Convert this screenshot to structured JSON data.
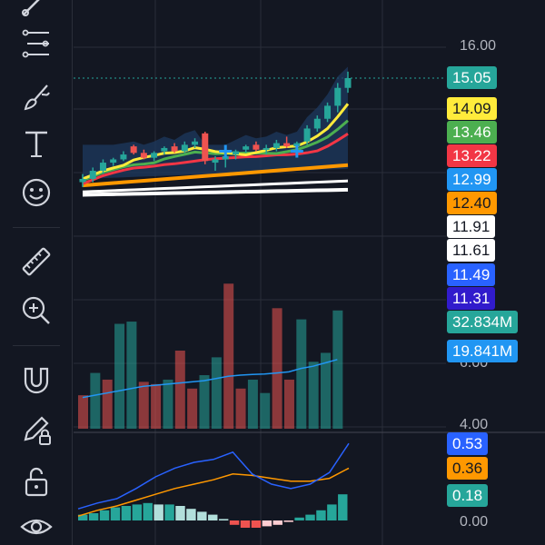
{
  "toolbar": {
    "tools": [
      {
        "name": "trend-line-tool-icon"
      },
      {
        "name": "fib-retracement-tool-icon"
      },
      {
        "name": "brush-tool-icon"
      },
      {
        "name": "text-tool-icon"
      },
      {
        "name": "emoji-tool-icon"
      },
      {
        "name": "ruler-tool-icon"
      },
      {
        "name": "zoom-in-tool-icon"
      },
      {
        "name": "magnet-tool-icon"
      },
      {
        "name": "lock-drawing-tool-icon"
      },
      {
        "name": "unlock-tool-icon"
      },
      {
        "name": "eye-visibility-tool-icon"
      }
    ]
  },
  "price_axis": {
    "ticks": [
      "16.00",
      "6.00",
      "4.00",
      "0.00"
    ],
    "labels": [
      {
        "value": "15.05",
        "bg": "#26a69a",
        "fg": "#ffffff"
      },
      {
        "value": "14.09",
        "bg": "#ffeb3b",
        "fg": "#131722"
      },
      {
        "value": "13.46",
        "bg": "#4caf50",
        "fg": "#ffffff"
      },
      {
        "value": "13.22",
        "bg": "#f23645",
        "fg": "#ffffff"
      },
      {
        "value": "12.99",
        "bg": "#2196f3",
        "fg": "#ffffff"
      },
      {
        "value": "12.40",
        "bg": "#ff9800",
        "fg": "#131722"
      },
      {
        "value": "11.91",
        "bg": "#ffffff",
        "fg": "#131722"
      },
      {
        "value": "11.61",
        "bg": "#ffffff",
        "fg": "#131722"
      },
      {
        "value": "11.49",
        "bg": "#2962ff",
        "fg": "#ffffff"
      },
      {
        "value": "11.31",
        "bg": "#311bcc",
        "fg": "#ffffff"
      }
    ]
  },
  "volume_axis": {
    "labels": [
      {
        "value": "32.834M",
        "bg": "#26a69a",
        "fg": "#ffffff"
      },
      {
        "value": "19.841M",
        "bg": "#2196f3",
        "fg": "#ffffff"
      }
    ]
  },
  "macd_axis": {
    "labels": [
      {
        "value": "0.53",
        "bg": "#2962ff",
        "fg": "#ffffff"
      },
      {
        "value": "0.36",
        "bg": "#ff9800",
        "fg": "#131722"
      },
      {
        "value": "0.18",
        "bg": "#26a69a",
        "fg": "#ffffff"
      }
    ]
  },
  "colors": {
    "up": "#26a69a",
    "down": "#ef5350",
    "volume_up": "#26a69a",
    "volume_down": "#ef5350",
    "grid": "#2a2e39",
    "macd_line": "#2962ff",
    "signal_line": "#ff9800"
  },
  "chart_data": {
    "candles": [
      {
        "o": 11.85,
        "h": 12.1,
        "l": 11.7,
        "c": 11.95
      },
      {
        "o": 11.95,
        "h": 12.3,
        "l": 11.85,
        "c": 12.2
      },
      {
        "o": 12.2,
        "h": 12.55,
        "l": 12.1,
        "c": 12.45
      },
      {
        "o": 12.45,
        "h": 12.6,
        "l": 12.35,
        "c": 12.55
      },
      {
        "o": 12.55,
        "h": 12.8,
        "l": 12.5,
        "c": 12.7
      },
      {
        "o": 12.95,
        "h": 13.0,
        "l": 12.7,
        "c": 12.75
      },
      {
        "o": 12.75,
        "h": 12.85,
        "l": 12.55,
        "c": 12.6
      },
      {
        "o": 12.6,
        "h": 12.8,
        "l": 12.5,
        "c": 12.75
      },
      {
        "o": 12.8,
        "h": 12.95,
        "l": 12.7,
        "c": 12.9
      },
      {
        "o": 12.95,
        "h": 13.05,
        "l": 12.75,
        "c": 12.8
      },
      {
        "o": 12.8,
        "h": 13.1,
        "l": 12.75,
        "c": 13.0
      },
      {
        "o": 13.0,
        "h": 13.2,
        "l": 12.9,
        "c": 13.1
      },
      {
        "o": 13.35,
        "h": 13.4,
        "l": 12.4,
        "c": 12.5
      },
      {
        "o": 12.45,
        "h": 12.65,
        "l": 12.2,
        "c": 12.55
      },
      {
        "o": 12.55,
        "h": 12.7,
        "l": 12.3,
        "c": 12.65
      },
      {
        "o": 12.7,
        "h": 12.85,
        "l": 12.55,
        "c": 12.8
      },
      {
        "o": 12.85,
        "h": 13.0,
        "l": 12.75,
        "c": 12.95
      },
      {
        "o": 13.0,
        "h": 13.1,
        "l": 12.8,
        "c": 12.85
      },
      {
        "o": 12.85,
        "h": 13.0,
        "l": 12.7,
        "c": 12.9
      },
      {
        "o": 12.9,
        "h": 13.15,
        "l": 12.8,
        "c": 13.05
      },
      {
        "o": 13.05,
        "h": 13.25,
        "l": 12.9,
        "c": 12.95
      },
      {
        "o": 12.95,
        "h": 13.1,
        "l": 12.7,
        "c": 13.05
      },
      {
        "o": 13.1,
        "h": 13.6,
        "l": 13.0,
        "c": 13.5
      },
      {
        "o": 13.5,
        "h": 13.9,
        "l": 13.4,
        "c": 13.8
      },
      {
        "o": 13.8,
        "h": 14.3,
        "l": 13.7,
        "c": 14.2
      },
      {
        "o": 14.2,
        "h": 14.9,
        "l": 14.0,
        "c": 14.75
      },
      {
        "o": 14.75,
        "h": 15.25,
        "l": 14.6,
        "c": 15.05
      }
    ],
    "volume": {
      "bars": [
        {
          "v": 15,
          "up": false
        },
        {
          "v": 25,
          "up": true
        },
        {
          "v": 22,
          "up": false
        },
        {
          "v": 47,
          "up": true
        },
        {
          "v": 48,
          "up": true
        },
        {
          "v": 21,
          "up": false
        },
        {
          "v": 20,
          "up": false
        },
        {
          "v": 22,
          "up": true
        },
        {
          "v": 35,
          "up": false
        },
        {
          "v": 18,
          "up": false
        },
        {
          "v": 24,
          "up": true
        },
        {
          "v": 32,
          "up": true
        },
        {
          "v": 65,
          "up": false
        },
        {
          "v": 18,
          "up": false
        },
        {
          "v": 22,
          "up": true
        },
        {
          "v": 16,
          "up": true
        },
        {
          "v": 54,
          "up": false
        },
        {
          "v": 22,
          "up": false
        },
        {
          "v": 49,
          "up": true
        },
        {
          "v": 30,
          "up": true
        },
        {
          "v": 34,
          "up": true
        },
        {
          "v": 53,
          "up": true
        }
      ],
      "ma": [
        14,
        15,
        16,
        17,
        18,
        19,
        19.5,
        20,
        20.5,
        21,
        21.5,
        22.5,
        23.5,
        24,
        24.3,
        24.5,
        25,
        25.5,
        27,
        28,
        29.5,
        31
      ],
      "ylim": [
        0,
        70
      ]
    },
    "macd": {
      "macd": [
        0.08,
        0.12,
        0.15,
        0.22,
        0.3,
        0.36,
        0.4,
        0.42,
        0.47,
        0.32,
        0.25,
        0.22,
        0.25,
        0.33,
        0.53
      ],
      "signal": [
        0.03,
        0.07,
        0.1,
        0.14,
        0.18,
        0.22,
        0.25,
        0.28,
        0.32,
        0.31,
        0.29,
        0.27,
        0.27,
        0.29,
        0.36
      ],
      "hist": [
        0.04,
        0.05,
        0.07,
        0.09,
        0.1,
        0.11,
        0.12,
        0.11,
        0.11,
        0.1,
        0.08,
        0.06,
        0.04,
        0.01,
        -0.03,
        -0.05,
        -0.05,
        -0.04,
        -0.03,
        -0.01,
        0.02,
        0.04,
        0.07,
        0.11,
        0.18
      ],
      "ylim": [
        -0.1,
        0.6
      ]
    }
  }
}
